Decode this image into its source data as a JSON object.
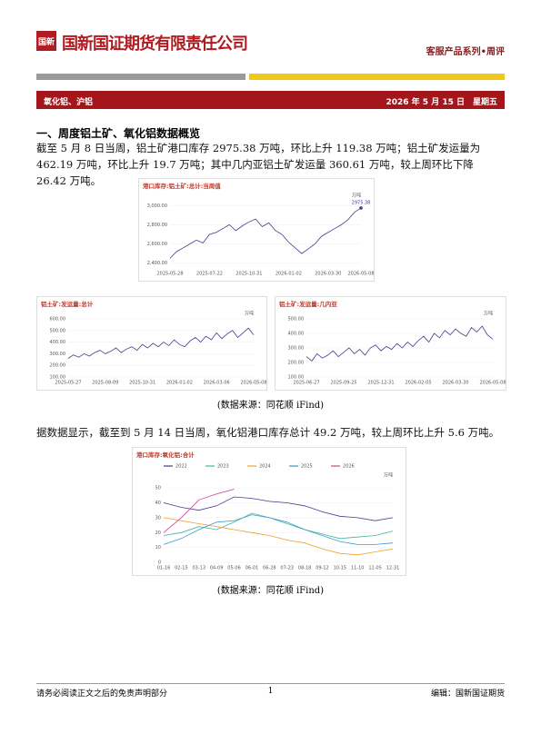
{
  "header": {
    "logo": "国新",
    "company": "国新国证期货有限责任公司",
    "series": "客服产品系列•周评"
  },
  "banner": {
    "left": "氧化铝、沪铝",
    "date": "2026 年 5 月 15 日　星期五"
  },
  "section": {
    "title": "一、周度铝土矿、氧化铝数据概览",
    "para1": "截至 5 月 8 日当周，铝土矿港口库存 2975.38 万吨，环比上升 119.38 万吨；铝土矿发运量为 462.19 万吨，环比上升 19.7 万吨；其中几内亚铝土矿发运量 360.61 万吨，较上周环比下降 26.42 万吨。",
    "para2": "据数据显示，截至到 5 月 14 日当周，氧化铝港口库存总计 49.2 万吨，较上周环比上升 5.6 万吨。"
  },
  "charts": [
    {
      "type": "line",
      "title": "港口库存:铝土矿:总计:当周值",
      "unit": "万吨",
      "annotation": "2975.38",
      "categories": [
        "2025-05-28",
        null,
        null,
        null,
        null,
        null,
        "2025-07-22",
        null,
        null,
        null,
        null,
        null,
        "2025-10-31",
        null,
        null,
        null,
        null,
        null,
        "2026-01-02",
        null,
        null,
        null,
        null,
        null,
        "2026-03-30",
        null,
        null,
        null,
        null,
        "2026-05-08"
      ],
      "series": [
        {
          "color": "#3c3f8f",
          "values": [
            2450,
            2520,
            2560,
            2600,
            2640,
            2610,
            2700,
            2720,
            2760,
            2800,
            2740,
            2790,
            2830,
            2860,
            2780,
            2820,
            2740,
            2700,
            2620,
            2560,
            2500,
            2550,
            2600,
            2680,
            2720,
            2760,
            2800,
            2850,
            2930,
            2975.38
          ]
        }
      ],
      "ylim": [
        2350,
        3050
      ],
      "yticks": [
        {
          "value": 2400,
          "label": "2,400.00"
        },
        {
          "value": 2600,
          "label": "2,600.00"
        },
        {
          "value": 2800,
          "label": "2,800.00"
        },
        {
          "value": 3000,
          "label": "3,000.00"
        }
      ]
    },
    {
      "type": "line",
      "title": "铝土矿:发运量:总计",
      "unit": "万吨",
      "categories": [
        "2025-05-27",
        null,
        null,
        null,
        null,
        null,
        null,
        "2025-08-09",
        null,
        null,
        null,
        null,
        null,
        null,
        "2025-10-31",
        null,
        null,
        null,
        null,
        null,
        null,
        "2026-01-02",
        null,
        null,
        null,
        null,
        null,
        null,
        "2026-03-06",
        null,
        null,
        null,
        null,
        null,
        null,
        "2026-05-08"
      ],
      "series": [
        {
          "color": "#3c3f8f",
          "values": [
            260,
            290,
            270,
            300,
            280,
            310,
            330,
            300,
            320,
            350,
            310,
            340,
            360,
            330,
            380,
            350,
            390,
            360,
            400,
            370,
            420,
            380,
            360,
            410,
            440,
            400,
            450,
            420,
            480,
            430,
            470,
            500,
            440,
            480,
            520,
            462.19
          ]
        }
      ],
      "ylim": [
        100,
        600
      ],
      "yticks": [
        {
          "value": 100,
          "label": "100.00"
        },
        {
          "value": 200,
          "label": "200.00"
        },
        {
          "value": 300,
          "label": "300.00"
        },
        {
          "value": 400,
          "label": "400.00"
        },
        {
          "value": 500,
          "label": "500.00"
        },
        {
          "value": 600,
          "label": "600.00"
        }
      ]
    },
    {
      "type": "line",
      "title": "铝土矿:发运量:几内亚",
      "unit": "万吨",
      "categories": [
        "2025-06-27",
        null,
        null,
        null,
        null,
        null,
        null,
        "2025-09-25",
        null,
        null,
        null,
        null,
        null,
        null,
        "2025-12-31",
        null,
        null,
        null,
        null,
        null,
        null,
        "2026-02-05",
        null,
        null,
        null,
        null,
        null,
        null,
        "2026-03-30",
        null,
        null,
        null,
        null,
        null,
        null,
        "2026-05-08"
      ],
      "series": [
        {
          "color": "#3c3f8f",
          "values": [
            240,
            210,
            260,
            230,
            250,
            280,
            240,
            270,
            300,
            260,
            290,
            250,
            300,
            320,
            280,
            310,
            290,
            330,
            300,
            340,
            310,
            350,
            380,
            340,
            400,
            370,
            420,
            390,
            430,
            400,
            380,
            440,
            410,
            450,
            390,
            360.61
          ]
        }
      ],
      "ylim": [
        100,
        500
      ],
      "yticks": [
        {
          "value": 100,
          "label": "100.00"
        },
        {
          "value": 200,
          "label": "200.00"
        },
        {
          "value": 300,
          "label": "300.00"
        },
        {
          "value": 400,
          "label": "400.00"
        },
        {
          "value": 500,
          "label": "500.00"
        }
      ]
    },
    {
      "type": "line",
      "title": "港口库存:氧化铝:合计",
      "unit": "万吨",
      "categories": [
        "01-16",
        "02-15",
        "03-13",
        "04-09",
        "05-06",
        "06-01",
        "06-28",
        "07-23",
        "08-18",
        "09-12",
        "10-15",
        "11-10",
        "12-05",
        "12-31"
      ],
      "series": [
        {
          "name": "2022",
          "color": "#3c3f8f",
          "values": [
            40,
            37,
            35,
            38,
            44,
            43,
            41,
            40,
            38,
            34,
            31,
            30,
            28,
            30
          ]
        },
        {
          "name": "2023",
          "color": "#3fb8a0",
          "values": [
            18,
            20,
            24,
            22,
            27,
            33,
            30,
            26,
            22,
            19,
            16,
            17,
            18,
            21
          ]
        },
        {
          "name": "2024",
          "color": "#f0a030",
          "values": [
            30,
            28,
            26,
            24,
            22,
            20,
            18,
            15,
            13,
            9,
            6,
            5,
            7,
            9
          ]
        },
        {
          "name": "2025",
          "color": "#3a9ad0",
          "values": [
            12,
            16,
            22,
            27,
            28,
            32,
            30,
            27,
            22,
            18,
            14,
            12,
            12,
            13
          ]
        },
        {
          "name": "2026",
          "color": "#d0409a",
          "values": [
            20,
            30,
            42,
            46,
            49.2,
            null,
            null,
            null,
            null,
            null,
            null,
            null,
            null,
            null
          ]
        }
      ],
      "ylim": [
        0,
        55
      ],
      "yticks": [
        0,
        10,
        20,
        30,
        40,
        50
      ]
    }
  ],
  "sources": [
    "(数据来源：同花顺 iFind)",
    "(数据来源：同花顺 iFind)"
  ],
  "footer": {
    "left": "请务必阅读正文之后的免责声明部分",
    "page": "1",
    "right": "编辑：国新国证期货"
  }
}
